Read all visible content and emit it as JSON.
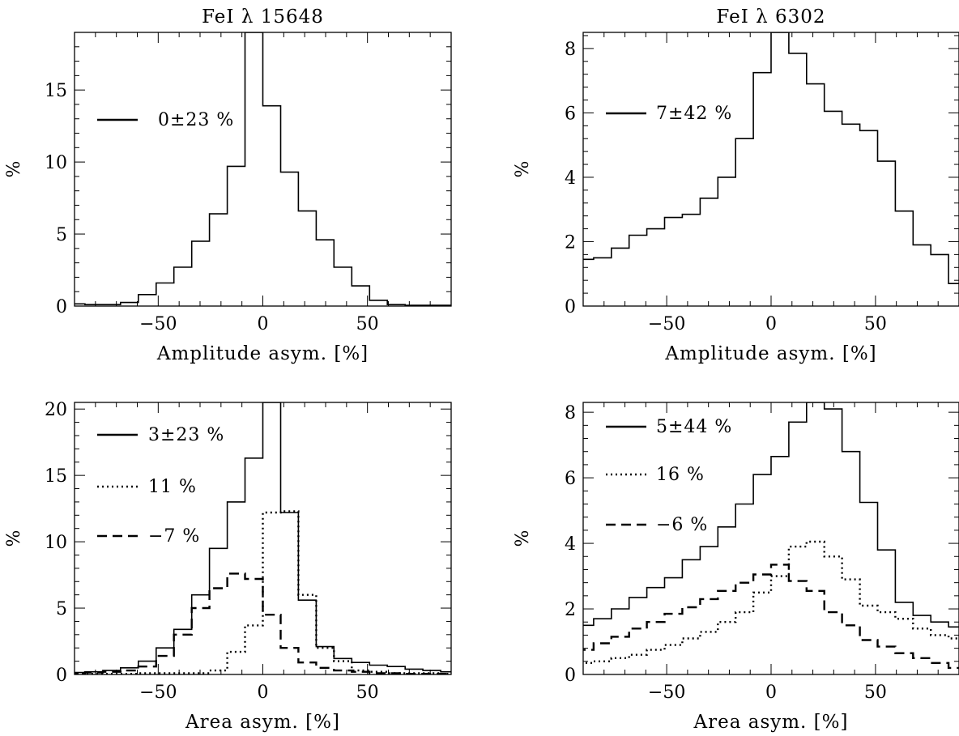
{
  "chart_data": [
    {
      "type": "line",
      "title": "FeI λ 15648",
      "xlabel": "Amplitude asym. [%]",
      "ylabel": "%",
      "xlim": [
        -90,
        90
      ],
      "ylim": [
        0,
        19
      ],
      "xticks": [
        -50,
        0,
        50
      ],
      "xtick_labels": [
        "−50",
        "0",
        "50"
      ],
      "yticks": [
        0,
        5,
        10,
        15
      ],
      "ytick_labels": [
        "0",
        "5",
        "10",
        "15"
      ],
      "step": 8.5,
      "series": [
        {
          "name": "0±23 %",
          "style": "solid",
          "x": [
            -89.25,
            -80.75,
            -72.25,
            -63.75,
            -55.25,
            -46.75,
            -38.25,
            -29.75,
            -21.25,
            -12.75,
            -4.25,
            4.25,
            12.75,
            21.25,
            29.75,
            38.25,
            46.75,
            55.25,
            63.75,
            72.25,
            80.75,
            89.25
          ],
          "values": [
            0.15,
            0.1,
            0.1,
            0.25,
            0.8,
            1.6,
            2.7,
            4.5,
            6.4,
            9.7,
            19,
            13.9,
            9.3,
            6.6,
            4.6,
            2.7,
            1.4,
            0.4,
            0.1,
            0.05,
            0.05,
            0.05
          ]
        }
      ]
    },
    {
      "type": "line",
      "title": "FeI λ 6302",
      "xlabel": "Amplitude asym. [%]",
      "ylabel": "%",
      "xlim": [
        -90,
        90
      ],
      "ylim": [
        0,
        8.5
      ],
      "xticks": [
        -50,
        0,
        50
      ],
      "xtick_labels": [
        "−50",
        "0",
        "50"
      ],
      "yticks": [
        0,
        2,
        4,
        6,
        8
      ],
      "ytick_labels": [
        "0",
        "2",
        "4",
        "6",
        "8"
      ],
      "step": 8.5,
      "series": [
        {
          "name": "7±42 %",
          "style": "solid",
          "x": [
            -89.25,
            -80.75,
            -72.25,
            -63.75,
            -55.25,
            -46.75,
            -38.25,
            -29.75,
            -21.25,
            -12.75,
            -4.25,
            4.25,
            12.75,
            21.25,
            29.75,
            38.25,
            46.75,
            55.25,
            63.75,
            72.25,
            80.75,
            89.25
          ],
          "values": [
            1.45,
            1.5,
            1.8,
            2.2,
            2.4,
            2.75,
            2.85,
            3.35,
            4.0,
            5.2,
            7.25,
            8.5,
            7.85,
            6.9,
            6.05,
            5.65,
            5.45,
            4.5,
            2.95,
            1.9,
            1.6,
            0.7
          ]
        }
      ]
    },
    {
      "type": "line",
      "title": "",
      "xlabel": "Area asym. [%]",
      "ylabel": "%",
      "xlim": [
        -90,
        90
      ],
      "ylim": [
        0,
        20.5
      ],
      "xticks": [
        -50,
        0,
        50
      ],
      "xtick_labels": [
        "−50",
        "0",
        "50"
      ],
      "yticks": [
        0,
        5,
        10,
        15,
        20
      ],
      "ytick_labels": [
        "0",
        "5",
        "10",
        "15",
        "20"
      ],
      "step": 8.5,
      "series": [
        {
          "name": "3±23 %",
          "style": "solid",
          "x": [
            -89.25,
            -80.75,
            -72.25,
            -63.75,
            -55.25,
            -46.75,
            -38.25,
            -29.75,
            -21.25,
            -12.75,
            -4.25,
            4.25,
            12.75,
            21.25,
            29.75,
            38.25,
            46.75,
            55.25,
            63.75,
            72.25,
            80.75,
            89.25
          ],
          "values": [
            0.15,
            0.2,
            0.3,
            0.5,
            1.0,
            2.0,
            3.4,
            6.0,
            9.5,
            13.0,
            16.3,
            20.5,
            12.2,
            5.6,
            2.1,
            1.2,
            0.9,
            0.7,
            0.6,
            0.4,
            0.3,
            0.2
          ]
        },
        {
          "name": "11 %",
          "style": "dotted",
          "x": [
            -89.25,
            -80.75,
            -72.25,
            -63.75,
            -55.25,
            -46.75,
            -38.25,
            -29.75,
            -21.25,
            -12.75,
            -4.25,
            4.25,
            12.75,
            21.25,
            29.75,
            38.25,
            46.75,
            55.25,
            63.75,
            72.25,
            80.75,
            89.25
          ],
          "values": [
            0.05,
            0.05,
            0.05,
            0.05,
            0.1,
            0.1,
            0.1,
            0.1,
            0.3,
            1.7,
            3.7,
            12.2,
            12.3,
            6.0,
            2.0,
            1.0,
            0.3,
            0.2,
            0.1,
            0.1,
            0.1,
            0.05
          ]
        },
        {
          "name": "−7 %",
          "style": "dashed",
          "x": [
            -89.25,
            -80.75,
            -72.25,
            -63.75,
            -55.25,
            -46.75,
            -38.25,
            -29.75,
            -21.25,
            -12.75,
            -4.25,
            4.25,
            12.75,
            21.25,
            29.75,
            38.25,
            46.75,
            55.25,
            63.75,
            72.25,
            80.75,
            89.25
          ],
          "values": [
            0.1,
            0.15,
            0.2,
            0.3,
            0.6,
            1.4,
            3.0,
            5.0,
            6.5,
            7.6,
            7.2,
            4.5,
            2.0,
            0.9,
            0.5,
            0.3,
            0.2,
            0.1,
            0.1,
            0.05,
            0.05,
            0.05
          ]
        }
      ]
    },
    {
      "type": "line",
      "title": "",
      "xlabel": "Area asym. [%]",
      "ylabel": "%",
      "xlim": [
        -90,
        90
      ],
      "ylim": [
        0,
        8.3
      ],
      "xticks": [
        -50,
        0,
        50
      ],
      "xtick_labels": [
        "−50",
        "0",
        "50"
      ],
      "yticks": [
        0,
        2,
        4,
        6,
        8
      ],
      "ytick_labels": [
        "0",
        "2",
        "4",
        "6",
        "8"
      ],
      "step": 8.5,
      "series": [
        {
          "name": "5±44 %",
          "style": "solid",
          "x": [
            -89.25,
            -80.75,
            -72.25,
            -63.75,
            -55.25,
            -46.75,
            -38.25,
            -29.75,
            -21.25,
            -12.75,
            -4.25,
            4.25,
            12.75,
            21.25,
            29.75,
            38.25,
            46.75,
            55.25,
            63.75,
            72.25,
            80.75,
            89.25
          ],
          "values": [
            1.5,
            1.7,
            2.0,
            2.35,
            2.65,
            2.95,
            3.5,
            3.9,
            4.5,
            5.2,
            6.1,
            6.65,
            7.7,
            8.3,
            8.1,
            6.8,
            5.25,
            3.8,
            2.2,
            1.8,
            1.6,
            1.45
          ]
        },
        {
          "name": "16 %",
          "style": "dotted",
          "x": [
            -89.25,
            -80.75,
            -72.25,
            -63.75,
            -55.25,
            -46.75,
            -38.25,
            -29.75,
            -21.25,
            -12.75,
            -4.25,
            4.25,
            12.75,
            21.25,
            29.75,
            38.25,
            46.75,
            55.25,
            63.75,
            72.25,
            80.75,
            89.25
          ],
          "values": [
            0.35,
            0.4,
            0.5,
            0.6,
            0.75,
            0.9,
            1.1,
            1.3,
            1.6,
            1.9,
            2.5,
            3.0,
            3.9,
            4.05,
            3.6,
            2.9,
            2.1,
            1.9,
            1.7,
            1.4,
            1.2,
            1.1
          ]
        },
        {
          "name": "−6 %",
          "style": "dashed",
          "x": [
            -89.25,
            -80.75,
            -72.25,
            -63.75,
            -55.25,
            -46.75,
            -38.25,
            -29.75,
            -21.25,
            -12.75,
            -4.25,
            4.25,
            12.75,
            21.25,
            29.75,
            38.25,
            46.75,
            55.25,
            63.75,
            72.25,
            80.75,
            89.25
          ],
          "values": [
            0.75,
            0.95,
            1.15,
            1.4,
            1.6,
            1.85,
            2.05,
            2.3,
            2.55,
            2.8,
            3.05,
            3.35,
            2.85,
            2.55,
            1.9,
            1.5,
            1.05,
            0.85,
            0.65,
            0.5,
            0.35,
            0.2
          ]
        }
      ]
    }
  ]
}
